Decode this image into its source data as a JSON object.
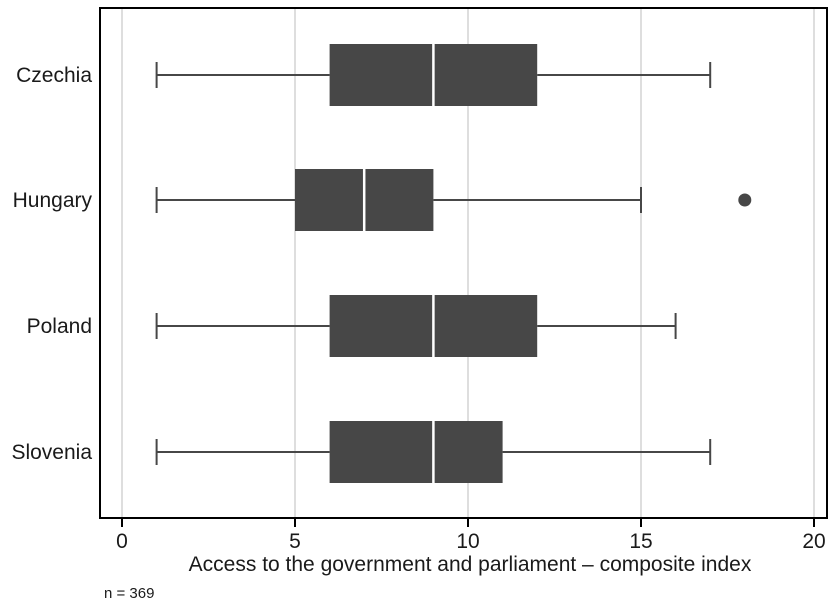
{
  "chart_data": {
    "type": "boxplot",
    "orientation": "horizontal",
    "title": "",
    "xlabel": "Access to the government and parliament – composite index",
    "ylabel": "",
    "xlim": [
      0,
      20
    ],
    "xticks": [
      0,
      5,
      10,
      15,
      20
    ],
    "grid": true,
    "note": "n = 369",
    "colors": {
      "box": "#474747",
      "median": "#ffffff",
      "whisker": "#474747",
      "grid": "#d3d3d3",
      "frame": "#000000"
    },
    "categories": [
      "Czechia",
      "Hungary",
      "Poland",
      "Slovenia"
    ],
    "series": [
      {
        "category": "Czechia",
        "min": 1,
        "q1": 6,
        "median": 9,
        "q3": 12,
        "max": 17,
        "outliers": []
      },
      {
        "category": "Hungary",
        "min": 1,
        "q1": 5,
        "median": 7,
        "q3": 9,
        "max": 15,
        "outliers": [
          18
        ]
      },
      {
        "category": "Poland",
        "min": 1,
        "q1": 6,
        "median": 9,
        "q3": 12,
        "max": 16,
        "outliers": []
      },
      {
        "category": "Slovenia",
        "min": 1,
        "q1": 6,
        "median": 9,
        "q3": 11,
        "max": 17,
        "outliers": []
      }
    ]
  }
}
